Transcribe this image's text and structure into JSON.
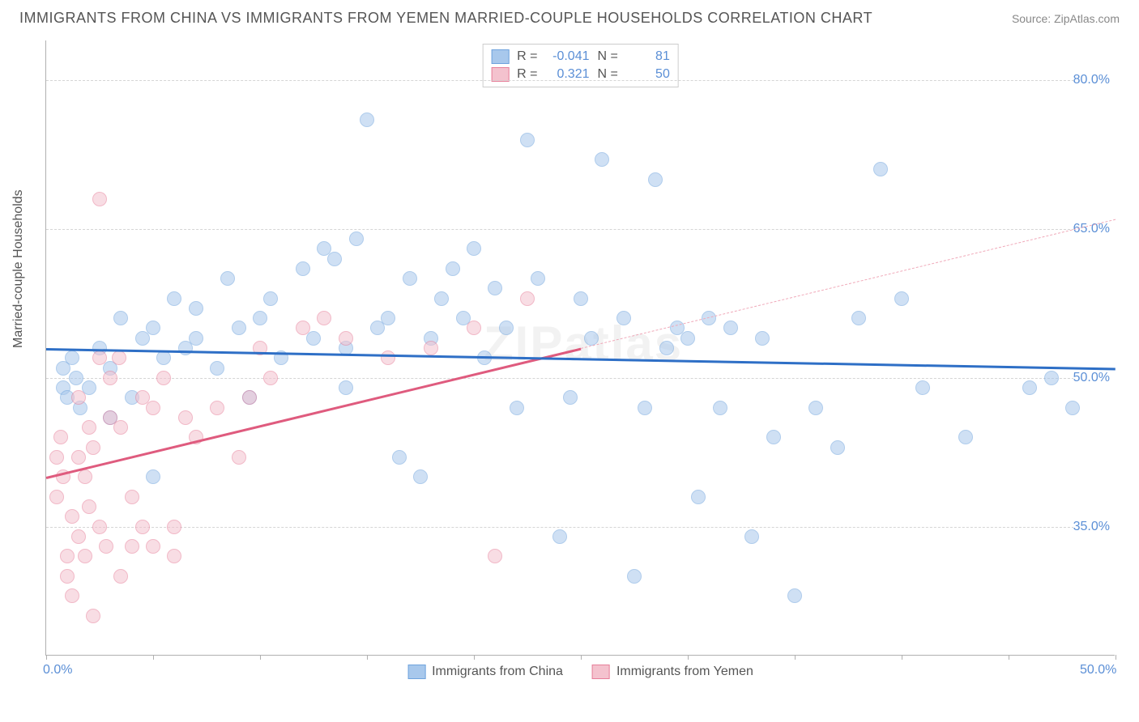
{
  "title": "IMMIGRANTS FROM CHINA VS IMMIGRANTS FROM YEMEN MARRIED-COUPLE HOUSEHOLDS CORRELATION CHART",
  "source": "Source: ZipAtlas.com",
  "ylabel": "Married-couple Households",
  "watermark": "ZIPatlas",
  "chart": {
    "type": "scatter",
    "xlim": [
      0,
      50
    ],
    "ylim": [
      22,
      84
    ],
    "x_ticks": [
      0,
      5,
      10,
      15,
      20,
      25,
      30,
      35,
      40,
      45,
      50
    ],
    "x_tick_labels_shown": {
      "0": "0.0%",
      "50": "50.0%"
    },
    "y_gridlines": [
      35,
      50,
      65,
      80
    ],
    "y_tick_labels": {
      "35": "35.0%",
      "50": "50.0%",
      "65": "65.0%",
      "80": "80.0%"
    },
    "background_color": "#ffffff",
    "grid_color": "#d5d5d5",
    "axis_color": "#b0b0b0",
    "tick_label_color": "#5b8fd6",
    "point_radius": 9,
    "point_opacity": 0.55,
    "series": [
      {
        "name": "Immigrants from China",
        "color_fill": "#a8c8ec",
        "color_stroke": "#6fa3dd",
        "R": "-0.041",
        "N": "81",
        "trend": {
          "x1": 0,
          "y1": 53,
          "x2": 50,
          "y2": 51,
          "color": "#2e6fc6",
          "width": 2.5,
          "style": "solid"
        },
        "points": [
          [
            0.8,
            49
          ],
          [
            0.8,
            51
          ],
          [
            1,
            48
          ],
          [
            1.2,
            52
          ],
          [
            1.4,
            50
          ],
          [
            1.6,
            47
          ],
          [
            2,
            49
          ],
          [
            2.5,
            53
          ],
          [
            3,
            51
          ],
          [
            3,
            46
          ],
          [
            3.5,
            56
          ],
          [
            4,
            48
          ],
          [
            4.5,
            54
          ],
          [
            5,
            40
          ],
          [
            5,
            55
          ],
          [
            5.5,
            52
          ],
          [
            6,
            58
          ],
          [
            6.5,
            53
          ],
          [
            7,
            54
          ],
          [
            7,
            57
          ],
          [
            8,
            51
          ],
          [
            8.5,
            60
          ],
          [
            9,
            55
          ],
          [
            9.5,
            48
          ],
          [
            10,
            56
          ],
          [
            10.5,
            58
          ],
          [
            11,
            52
          ],
          [
            12,
            61
          ],
          [
            12.5,
            54
          ],
          [
            13,
            63
          ],
          [
            13.5,
            62
          ],
          [
            14,
            53
          ],
          [
            14,
            49
          ],
          [
            14.5,
            64
          ],
          [
            15,
            76
          ],
          [
            15.5,
            55
          ],
          [
            16,
            56
          ],
          [
            16.5,
            42
          ],
          [
            17,
            60
          ],
          [
            17.5,
            40
          ],
          [
            18,
            54
          ],
          [
            18.5,
            58
          ],
          [
            19,
            61
          ],
          [
            19.5,
            56
          ],
          [
            20,
            63
          ],
          [
            20.5,
            52
          ],
          [
            21,
            59
          ],
          [
            21.5,
            55
          ],
          [
            22,
            47
          ],
          [
            22.5,
            74
          ],
          [
            23,
            60
          ],
          [
            24,
            34
          ],
          [
            24.5,
            48
          ],
          [
            25,
            58
          ],
          [
            25.5,
            54
          ],
          [
            26,
            72
          ],
          [
            27,
            56
          ],
          [
            27.5,
            30
          ],
          [
            28,
            47
          ],
          [
            28.5,
            70
          ],
          [
            29,
            53
          ],
          [
            29.5,
            55
          ],
          [
            30,
            54
          ],
          [
            30.5,
            38
          ],
          [
            31,
            56
          ],
          [
            31.5,
            47
          ],
          [
            32,
            55
          ],
          [
            33,
            34
          ],
          [
            33.5,
            54
          ],
          [
            34,
            44
          ],
          [
            35,
            28
          ],
          [
            36,
            47
          ],
          [
            37,
            43
          ],
          [
            38,
            56
          ],
          [
            39,
            71
          ],
          [
            40,
            58
          ],
          [
            41,
            49
          ],
          [
            43,
            44
          ],
          [
            46,
            49
          ],
          [
            47,
            50
          ],
          [
            48,
            47
          ]
        ]
      },
      {
        "name": "Immigrants from Yemen",
        "color_fill": "#f4c2ce",
        "color_stroke": "#e77f9a",
        "R": "0.321",
        "N": "50",
        "trend_solid": {
          "x1": 0,
          "y1": 40,
          "x2": 25,
          "y2": 53,
          "color": "#df5b7e",
          "width": 2.5
        },
        "trend_dashed": {
          "x1": 25,
          "y1": 53,
          "x2": 50,
          "y2": 66,
          "color": "#f0a9b9",
          "width": 1.5
        },
        "points": [
          [
            0.5,
            42
          ],
          [
            0.5,
            38
          ],
          [
            0.7,
            44
          ],
          [
            0.8,
            40
          ],
          [
            1,
            30
          ],
          [
            1,
            32
          ],
          [
            1.2,
            36
          ],
          [
            1.2,
            28
          ],
          [
            1.5,
            34
          ],
          [
            1.5,
            42
          ],
          [
            1.5,
            48
          ],
          [
            1.8,
            40
          ],
          [
            1.8,
            32
          ],
          [
            2,
            37
          ],
          [
            2,
            45
          ],
          [
            2.2,
            26
          ],
          [
            2.2,
            43
          ],
          [
            2.5,
            68
          ],
          [
            2.5,
            52
          ],
          [
            2.5,
            35
          ],
          [
            2.8,
            33
          ],
          [
            3,
            46
          ],
          [
            3,
            50
          ],
          [
            3.4,
            52
          ],
          [
            3.5,
            30
          ],
          [
            3.5,
            45
          ],
          [
            4,
            33
          ],
          [
            4,
            38
          ],
          [
            4.5,
            48
          ],
          [
            4.5,
            35
          ],
          [
            5,
            47
          ],
          [
            5,
            33
          ],
          [
            5.5,
            50
          ],
          [
            6,
            32
          ],
          [
            6,
            35
          ],
          [
            6.5,
            46
          ],
          [
            7,
            44
          ],
          [
            8,
            47
          ],
          [
            9,
            42
          ],
          [
            9.5,
            48
          ],
          [
            10,
            53
          ],
          [
            10.5,
            50
          ],
          [
            12,
            55
          ],
          [
            13,
            56
          ],
          [
            14,
            54
          ],
          [
            16,
            52
          ],
          [
            18,
            53
          ],
          [
            20,
            55
          ],
          [
            21,
            32
          ],
          [
            22.5,
            58
          ]
        ]
      }
    ],
    "legend_bottom": [
      {
        "label": "Immigrants from China",
        "fill": "#a8c8ec",
        "stroke": "#6fa3dd"
      },
      {
        "label": "Immigrants from Yemen",
        "fill": "#f4c2ce",
        "stroke": "#e77f9a"
      }
    ]
  }
}
